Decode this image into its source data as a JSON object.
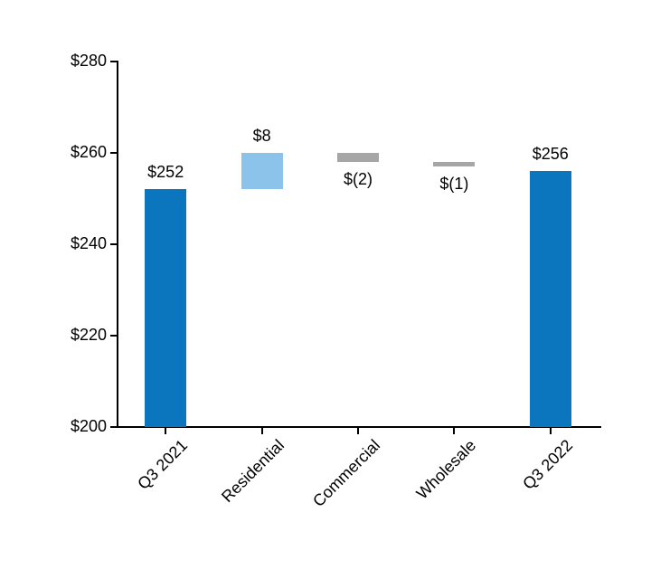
{
  "chart_data": {
    "type": "bar",
    "subtype": "waterfall",
    "title": "",
    "xlabel": "",
    "ylabel": "",
    "grid": false,
    "legend": false,
    "categories": [
      "Q3 2021",
      "Residential",
      "Commercial",
      "Wholesale",
      "Q3 2022"
    ],
    "bars": [
      {
        "category": "Q3 2021",
        "start": 200,
        "end": 252,
        "value": 252,
        "value_label": "$252",
        "label_position": "above",
        "color_key": "primary"
      },
      {
        "category": "Residential",
        "start": 252,
        "end": 260,
        "value": 8,
        "value_label": "$8",
        "label_position": "above",
        "color_key": "light"
      },
      {
        "category": "Commercial",
        "start": 258,
        "end": 260,
        "value": -2,
        "value_label": "$(2)",
        "label_position": "below",
        "color_key": "gray"
      },
      {
        "category": "Wholesale",
        "start": 257,
        "end": 258,
        "value": -1,
        "value_label": "$(1)",
        "label_position": "below",
        "color_key": "gray"
      },
      {
        "category": "Q3 2022",
        "start": 200,
        "end": 256,
        "value": 256,
        "value_label": "$256",
        "label_position": "above",
        "color_key": "primary"
      }
    ],
    "colors": {
      "primary": "#0b76be",
      "light": "#8cc3ea",
      "gray": "#a6a6a6"
    },
    "ylim": [
      200,
      280
    ],
    "yticks": [
      200,
      220,
      240,
      260,
      280
    ],
    "ytick_labels": [
      "$200",
      "$220",
      "$240",
      "$260",
      "$280"
    ]
  }
}
